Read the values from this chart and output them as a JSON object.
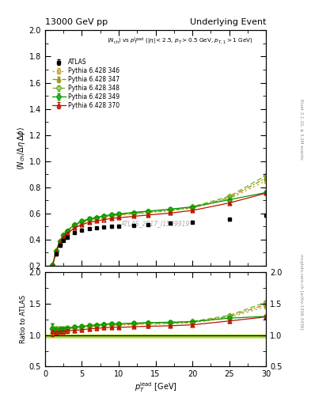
{
  "title_left": "13000 GeV pp",
  "title_right": "Underlying Event",
  "plot_label": "ATLAS_2017_I1509919",
  "right_label_top": "Rivet 3.1.10, ≥ 3.2M events",
  "right_label_bottom": "mcplots.cern.ch [arXiv:1306.3436]",
  "ylim_main": [
    0.2,
    2.0
  ],
  "ylim_ratio": [
    0.5,
    2.0
  ],
  "xlim": [
    0,
    30
  ],
  "yticks_main": [
    0.2,
    0.4,
    0.6,
    0.8,
    1.0,
    1.2,
    1.4,
    1.6,
    1.8,
    2.0
  ],
  "yticks_ratio": [
    0.5,
    1.0,
    1.5,
    2.0
  ],
  "ATLAS_x": [
    1.0,
    1.5,
    2.0,
    2.5,
    3.0,
    4.0,
    5.0,
    6.0,
    7.0,
    8.0,
    9.0,
    10.0,
    12.0,
    14.0,
    17.0,
    20.0,
    25.0,
    30.0
  ],
  "ATLAS_y": [
    0.185,
    0.29,
    0.355,
    0.395,
    0.42,
    0.455,
    0.475,
    0.485,
    0.49,
    0.495,
    0.5,
    0.505,
    0.51,
    0.515,
    0.525,
    0.535,
    0.555,
    0.585
  ],
  "ATLAS_yerr": [
    0.01,
    0.01,
    0.01,
    0.01,
    0.01,
    0.008,
    0.008,
    0.008,
    0.008,
    0.007,
    0.007,
    0.007,
    0.007,
    0.007,
    0.007,
    0.007,
    0.008,
    0.01
  ],
  "series": [
    {
      "label": "Pythia 6.428 346",
      "color": "#c8a030",
      "linestyle": "dotted",
      "marker": "s",
      "x": [
        1.0,
        1.5,
        2.0,
        2.5,
        3.0,
        4.0,
        5.0,
        6.0,
        7.0,
        8.0,
        9.0,
        10.0,
        12.0,
        14.0,
        17.0,
        20.0,
        25.0,
        30.0
      ],
      "y": [
        0.2,
        0.31,
        0.385,
        0.43,
        0.46,
        0.505,
        0.53,
        0.55,
        0.56,
        0.57,
        0.58,
        0.585,
        0.595,
        0.605,
        0.62,
        0.64,
        0.71,
        0.85
      ],
      "yerr": [
        0.008,
        0.008,
        0.007,
        0.007,
        0.006,
        0.005,
        0.005,
        0.005,
        0.005,
        0.004,
        0.004,
        0.004,
        0.004,
        0.004,
        0.005,
        0.006,
        0.008,
        0.013
      ]
    },
    {
      "label": "Pythia 6.428 347",
      "color": "#909000",
      "linestyle": "dashdot",
      "marker": "^",
      "x": [
        1.0,
        1.5,
        2.0,
        2.5,
        3.0,
        4.0,
        5.0,
        6.0,
        7.0,
        8.0,
        9.0,
        10.0,
        12.0,
        14.0,
        17.0,
        20.0,
        25.0,
        30.0
      ],
      "y": [
        0.205,
        0.315,
        0.39,
        0.435,
        0.465,
        0.51,
        0.535,
        0.555,
        0.565,
        0.575,
        0.585,
        0.59,
        0.6,
        0.61,
        0.625,
        0.645,
        0.72,
        0.87
      ],
      "yerr": [
        0.008,
        0.008,
        0.007,
        0.007,
        0.006,
        0.005,
        0.005,
        0.005,
        0.005,
        0.004,
        0.004,
        0.004,
        0.004,
        0.004,
        0.005,
        0.006,
        0.008,
        0.013
      ]
    },
    {
      "label": "Pythia 6.428 348",
      "color": "#70b020",
      "linestyle": "dashed",
      "marker": "D",
      "x": [
        1.0,
        1.5,
        2.0,
        2.5,
        3.0,
        4.0,
        5.0,
        6.0,
        7.0,
        8.0,
        9.0,
        10.0,
        12.0,
        14.0,
        17.0,
        20.0,
        25.0,
        30.0
      ],
      "y": [
        0.205,
        0.315,
        0.39,
        0.435,
        0.468,
        0.513,
        0.538,
        0.558,
        0.568,
        0.578,
        0.588,
        0.593,
        0.605,
        0.615,
        0.632,
        0.652,
        0.73,
        0.89
      ],
      "yerr": [
        0.008,
        0.008,
        0.007,
        0.007,
        0.006,
        0.005,
        0.005,
        0.005,
        0.005,
        0.004,
        0.004,
        0.004,
        0.004,
        0.004,
        0.005,
        0.006,
        0.008,
        0.013
      ]
    },
    {
      "label": "Pythia 6.428 349",
      "color": "#009900",
      "linestyle": "solid",
      "marker": "o",
      "x": [
        1.0,
        1.5,
        2.0,
        2.5,
        3.0,
        4.0,
        5.0,
        6.0,
        7.0,
        8.0,
        9.0,
        10.0,
        12.0,
        14.0,
        17.0,
        20.0,
        25.0,
        30.0
      ],
      "y": [
        0.205,
        0.315,
        0.39,
        0.435,
        0.468,
        0.515,
        0.542,
        0.56,
        0.57,
        0.582,
        0.592,
        0.597,
        0.608,
        0.618,
        0.633,
        0.65,
        0.705,
        0.76
      ],
      "yerr": [
        0.008,
        0.008,
        0.007,
        0.007,
        0.006,
        0.005,
        0.005,
        0.005,
        0.005,
        0.004,
        0.004,
        0.004,
        0.004,
        0.004,
        0.005,
        0.006,
        0.008,
        0.011
      ]
    },
    {
      "label": "Pythia 6.428 370",
      "color": "#bb1100",
      "linestyle": "solid",
      "marker": "^",
      "x": [
        1.0,
        1.5,
        2.0,
        2.5,
        3.0,
        4.0,
        5.0,
        6.0,
        7.0,
        8.0,
        9.0,
        10.0,
        12.0,
        14.0,
        17.0,
        20.0,
        25.0,
        30.0
      ],
      "y": [
        0.195,
        0.305,
        0.375,
        0.418,
        0.448,
        0.49,
        0.515,
        0.533,
        0.543,
        0.553,
        0.562,
        0.567,
        0.578,
        0.588,
        0.603,
        0.623,
        0.68,
        0.755
      ],
      "yerr": [
        0.008,
        0.008,
        0.007,
        0.007,
        0.006,
        0.005,
        0.005,
        0.005,
        0.005,
        0.004,
        0.004,
        0.004,
        0.004,
        0.004,
        0.005,
        0.006,
        0.008,
        0.011
      ]
    }
  ],
  "band_color_light": "#d8f080",
  "band_color_dark": "#a8d840",
  "band_ratio_low": 0.96,
  "band_ratio_high": 1.005
}
